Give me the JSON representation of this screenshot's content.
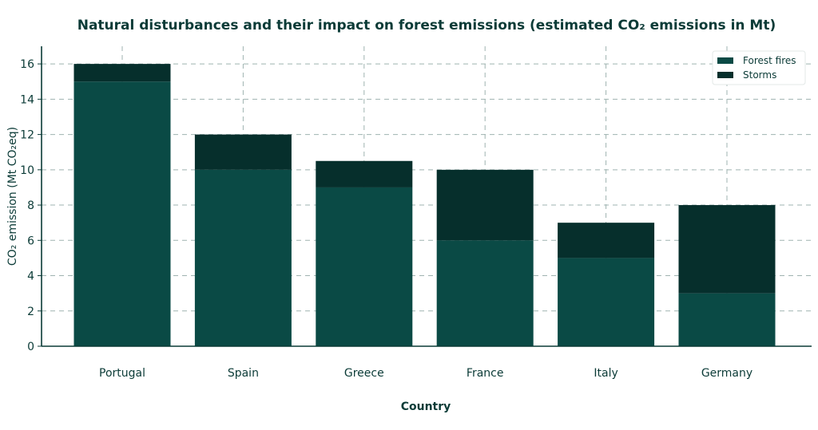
{
  "chart_data": {
    "type": "bar",
    "stacked": true,
    "title": "Natural disturbances and their impact on forest emissions (estimated CO₂ emissions in Mt)",
    "xlabel": "Country",
    "ylabel": "CO₂ emission (Mt CO₂eq)",
    "ylim": [
      0,
      17
    ],
    "yticks": [
      "0",
      "2",
      "4",
      "6",
      "8",
      "10",
      "12",
      "14",
      "16"
    ],
    "categories": [
      "Portugal",
      "Spain",
      "Greece",
      "France",
      "Italy",
      "Germany"
    ],
    "series": [
      {
        "name": "Forest fires",
        "color": "#0a4a45",
        "values": [
          15,
          10,
          9,
          6,
          5,
          3
        ]
      },
      {
        "name": "Storms",
        "color": "#062f2c",
        "values": [
          1,
          2,
          1.5,
          4,
          2,
          5
        ]
      }
    ],
    "grid": true,
    "legend_position": "top-right"
  }
}
